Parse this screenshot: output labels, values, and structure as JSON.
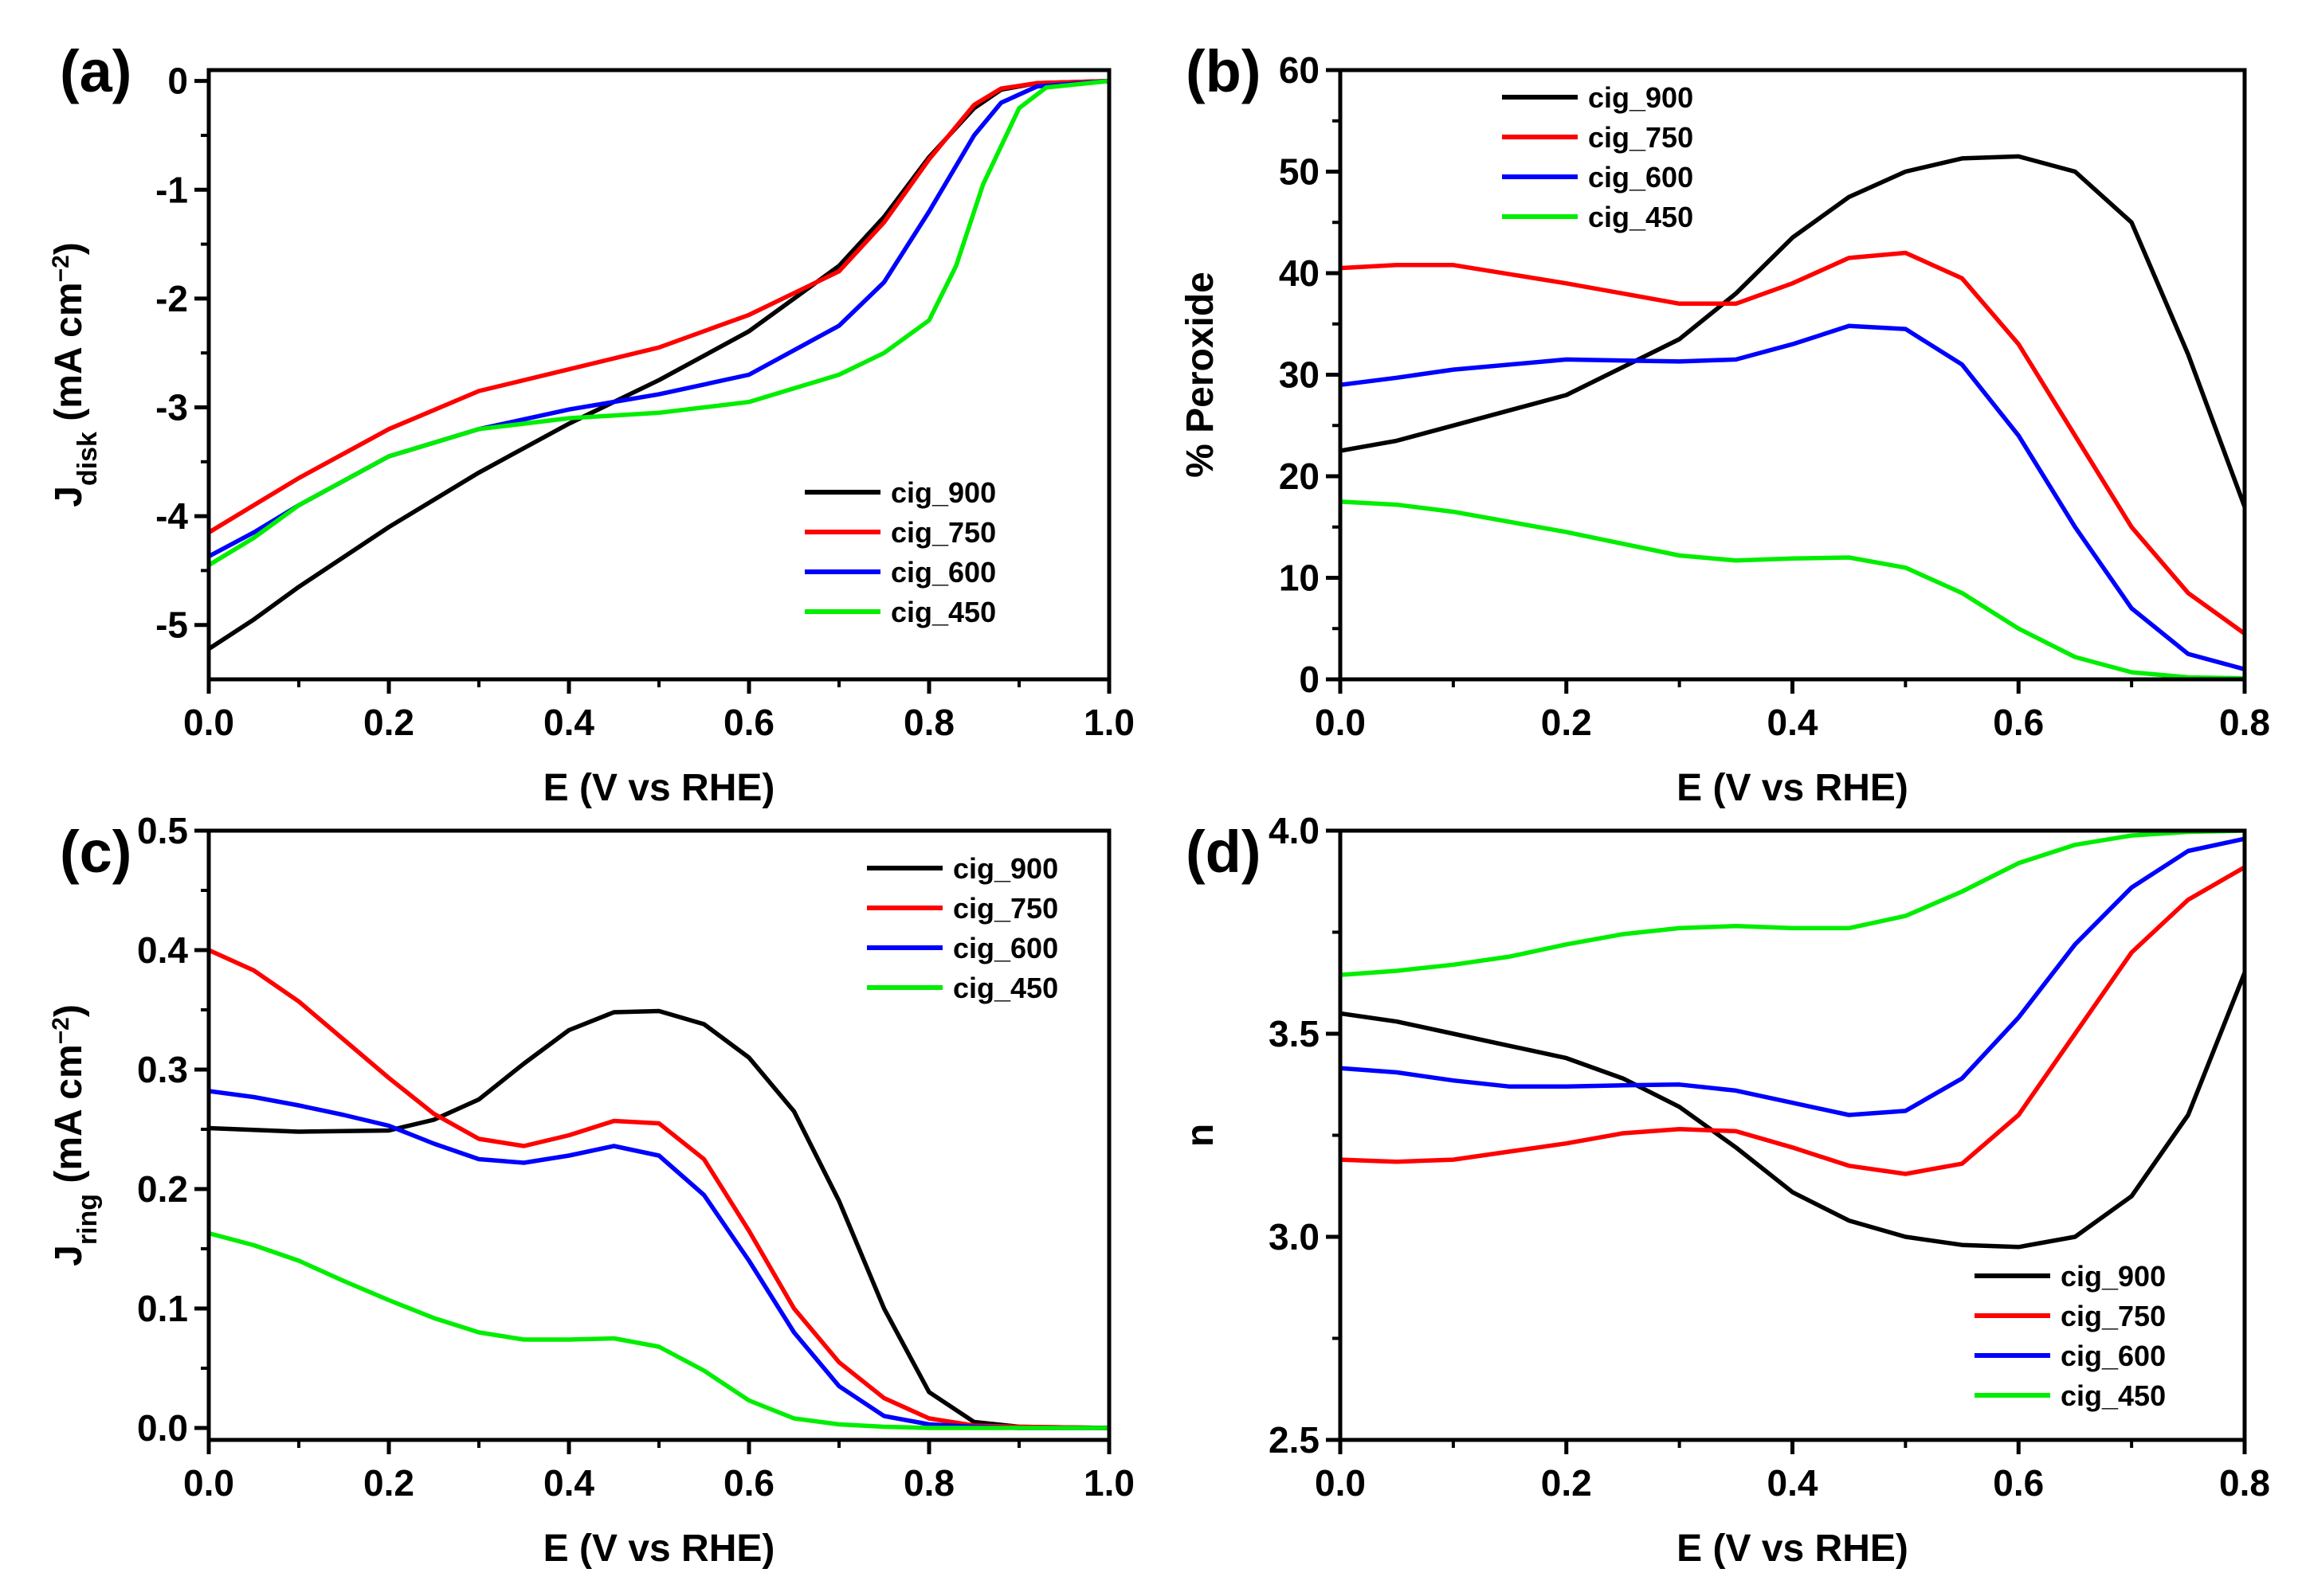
{
  "chart_data": [
    {
      "panel_label": "(a)",
      "type": "line",
      "xlabel": "E (V vs RHE)",
      "ylabel": {
        "main": "J",
        "sub": "disk",
        "unit": " (mA cm",
        "sup": "−2",
        "close": ")"
      },
      "xlim": [
        0,
        1.0
      ],
      "ylim": [
        -5.5,
        0.1
      ],
      "xticks": [
        0,
        0.2,
        0.4,
        0.6,
        0.8,
        1.0
      ],
      "xtick_labels": [
        "0.0",
        "0.2",
        "0.4",
        "0.6",
        "0.8",
        "1.0"
      ],
      "yticks": [
        0,
        -1,
        -2,
        -3,
        -4,
        -5
      ],
      "ytick_labels": [
        "0",
        "-1",
        "-2",
        "-3",
        "-4",
        "-5"
      ],
      "legend_position": "bottom-right",
      "series": [
        {
          "name": "cig_900",
          "color": "#000000",
          "x": [
            0,
            0.05,
            0.1,
            0.2,
            0.3,
            0.4,
            0.5,
            0.6,
            0.7,
            0.75,
            0.8,
            0.85,
            0.88,
            0.92,
            1.0
          ],
          "values": [
            -5.22,
            -4.95,
            -4.65,
            -4.1,
            -3.6,
            -3.15,
            -2.75,
            -2.3,
            -1.7,
            -1.25,
            -0.7,
            -0.25,
            -0.08,
            -0.02,
            0
          ]
        },
        {
          "name": "cig_750",
          "color": "#ff0000",
          "x": [
            0,
            0.05,
            0.1,
            0.2,
            0.3,
            0.4,
            0.5,
            0.6,
            0.7,
            0.75,
            0.8,
            0.85,
            0.88,
            0.92,
            1.0
          ],
          "values": [
            -4.15,
            -3.9,
            -3.65,
            -3.2,
            -2.85,
            -2.65,
            -2.45,
            -2.15,
            -1.75,
            -1.3,
            -0.72,
            -0.22,
            -0.07,
            -0.02,
            0
          ]
        },
        {
          "name": "cig_600",
          "color": "#0000ff",
          "x": [
            0,
            0.05,
            0.1,
            0.2,
            0.3,
            0.4,
            0.5,
            0.6,
            0.7,
            0.75,
            0.8,
            0.85,
            0.88,
            0.92,
            1.0
          ],
          "values": [
            -4.37,
            -4.15,
            -3.9,
            -3.45,
            -3.2,
            -3.02,
            -2.88,
            -2.7,
            -2.25,
            -1.85,
            -1.2,
            -0.5,
            -0.2,
            -0.05,
            0
          ]
        },
        {
          "name": "cig_450",
          "color": "#00ee00",
          "x": [
            0,
            0.05,
            0.1,
            0.2,
            0.3,
            0.4,
            0.5,
            0.6,
            0.7,
            0.75,
            0.8,
            0.83,
            0.86,
            0.9,
            0.93,
            1.0
          ],
          "values": [
            -4.45,
            -4.2,
            -3.9,
            -3.45,
            -3.2,
            -3.1,
            -3.05,
            -2.95,
            -2.7,
            -2.5,
            -2.2,
            -1.7,
            -0.95,
            -0.25,
            -0.06,
            0
          ]
        }
      ]
    },
    {
      "panel_label": "(b)",
      "type": "line",
      "xlabel": "E (V vs RHE)",
      "ylabel": {
        "main": "% Peroxide"
      },
      "xlim": [
        0,
        0.8
      ],
      "ylim": [
        0,
        60
      ],
      "xticks": [
        0,
        0.2,
        0.4,
        0.6,
        0.8
      ],
      "xtick_labels": [
        "0.0",
        "0.2",
        "0.4",
        "0.6",
        "0.8"
      ],
      "yticks": [
        0,
        10,
        20,
        30,
        40,
        50,
        60
      ],
      "ytick_labels": [
        "0",
        "10",
        "20",
        "30",
        "40",
        "50",
        "60"
      ],
      "legend_position": "top-left",
      "series": [
        {
          "name": "cig_900",
          "color": "#000000",
          "x": [
            0,
            0.05,
            0.1,
            0.2,
            0.3,
            0.35,
            0.4,
            0.45,
            0.5,
            0.55,
            0.6,
            0.65,
            0.7,
            0.75,
            0.8
          ],
          "values": [
            22.5,
            23.5,
            25,
            28,
            33.5,
            38,
            43.5,
            47.5,
            50,
            51.3,
            51.5,
            50,
            45,
            32,
            17
          ]
        },
        {
          "name": "cig_750",
          "color": "#ff0000",
          "x": [
            0,
            0.05,
            0.1,
            0.2,
            0.3,
            0.35,
            0.4,
            0.45,
            0.5,
            0.55,
            0.6,
            0.65,
            0.7,
            0.75,
            0.8
          ],
          "values": [
            40.5,
            40.8,
            40.8,
            39,
            37,
            37,
            39,
            41.5,
            42,
            39.5,
            33,
            24,
            15,
            8.5,
            4.5
          ]
        },
        {
          "name": "cig_600",
          "color": "#0000ff",
          "x": [
            0,
            0.05,
            0.1,
            0.2,
            0.3,
            0.35,
            0.4,
            0.45,
            0.5,
            0.55,
            0.6,
            0.65,
            0.7,
            0.75,
            0.8
          ],
          "values": [
            29,
            29.7,
            30.5,
            31.5,
            31.3,
            31.5,
            33,
            34.8,
            34.5,
            31,
            24,
            15,
            7,
            2.5,
            1
          ]
        },
        {
          "name": "cig_450",
          "color": "#00ee00",
          "x": [
            0,
            0.05,
            0.1,
            0.2,
            0.3,
            0.35,
            0.4,
            0.45,
            0.5,
            0.55,
            0.6,
            0.65,
            0.7,
            0.75,
            0.8
          ],
          "values": [
            17.5,
            17.2,
            16.5,
            14.5,
            12.2,
            11.7,
            11.9,
            12,
            11,
            8.5,
            5,
            2.2,
            0.7,
            0.2,
            0.1
          ]
        }
      ]
    },
    {
      "panel_label": "(c)",
      "type": "line",
      "xlabel": "E (V vs RHE)",
      "ylabel": {
        "main": "J",
        "sub": "ring",
        "unit": " (mA cm",
        "sup": "−2",
        "close": ")"
      },
      "xlim": [
        0,
        1.0
      ],
      "ylim": [
        -0.01,
        0.5
      ],
      "xticks": [
        0,
        0.2,
        0.4,
        0.6,
        0.8,
        1.0
      ],
      "xtick_labels": [
        "0.0",
        "0.2",
        "0.4",
        "0.6",
        "0.8",
        "1.0"
      ],
      "yticks": [
        0,
        0.1,
        0.2,
        0.3,
        0.4,
        0.5
      ],
      "ytick_labels": [
        "0.0",
        "0.1",
        "0.2",
        "0.3",
        "0.4",
        "0.5"
      ],
      "legend_position": "top-right",
      "series": [
        {
          "name": "cig_900",
          "color": "#000000",
          "x": [
            0,
            0.1,
            0.2,
            0.25,
            0.3,
            0.35,
            0.4,
            0.45,
            0.5,
            0.55,
            0.6,
            0.65,
            0.7,
            0.75,
            0.8,
            0.85,
            0.9,
            1.0
          ],
          "values": [
            0.251,
            0.248,
            0.249,
            0.258,
            0.275,
            0.305,
            0.333,
            0.348,
            0.349,
            0.338,
            0.31,
            0.265,
            0.19,
            0.1,
            0.03,
            0.005,
            0.001,
            0
          ]
        },
        {
          "name": "cig_750",
          "color": "#ff0000",
          "x": [
            0,
            0.05,
            0.1,
            0.15,
            0.2,
            0.25,
            0.3,
            0.35,
            0.4,
            0.45,
            0.5,
            0.55,
            0.6,
            0.65,
            0.7,
            0.75,
            0.8,
            0.85,
            0.9,
            1.0
          ],
          "values": [
            0.4,
            0.383,
            0.357,
            0.325,
            0.293,
            0.263,
            0.242,
            0.236,
            0.245,
            0.257,
            0.255,
            0.225,
            0.165,
            0.1,
            0.055,
            0.025,
            0.008,
            0.002,
            0.001,
            0
          ]
        },
        {
          "name": "cig_600",
          "color": "#0000ff",
          "x": [
            0,
            0.05,
            0.1,
            0.15,
            0.2,
            0.25,
            0.3,
            0.35,
            0.4,
            0.45,
            0.5,
            0.55,
            0.6,
            0.65,
            0.7,
            0.75,
            0.8,
            0.85,
            0.9,
            1.0
          ],
          "values": [
            0.282,
            0.277,
            0.27,
            0.262,
            0.253,
            0.238,
            0.225,
            0.222,
            0.228,
            0.236,
            0.228,
            0.195,
            0.14,
            0.08,
            0.035,
            0.01,
            0.003,
            0.001,
            0,
            0
          ]
        },
        {
          "name": "cig_450",
          "color": "#00ee00",
          "x": [
            0,
            0.05,
            0.1,
            0.15,
            0.2,
            0.25,
            0.3,
            0.35,
            0.4,
            0.45,
            0.5,
            0.55,
            0.6,
            0.65,
            0.7,
            0.75,
            0.8,
            0.9,
            1.0
          ],
          "values": [
            0.163,
            0.153,
            0.14,
            0.123,
            0.107,
            0.092,
            0.08,
            0.074,
            0.074,
            0.075,
            0.068,
            0.048,
            0.023,
            0.008,
            0.003,
            0.001,
            0,
            0,
            0
          ]
        }
      ]
    },
    {
      "panel_label": "(d)",
      "type": "line",
      "xlabel": "E (V vs RHE)",
      "ylabel": {
        "main": "n"
      },
      "xlim": [
        0,
        0.8
      ],
      "ylim": [
        2.5,
        4.0
      ],
      "xticks": [
        0,
        0.2,
        0.4,
        0.6,
        0.8
      ],
      "xtick_labels": [
        "0.0",
        "0.2",
        "0.4",
        "0.6",
        "0.8"
      ],
      "yticks": [
        2.5,
        3.0,
        3.5,
        4.0
      ],
      "ytick_labels": [
        "2.5",
        "3.0",
        "3.5",
        "4.0"
      ],
      "legend_position": "bottom-right",
      "series": [
        {
          "name": "cig_900",
          "color": "#000000",
          "x": [
            0,
            0.05,
            0.1,
            0.15,
            0.2,
            0.25,
            0.3,
            0.35,
            0.4,
            0.45,
            0.5,
            0.55,
            0.6,
            0.65,
            0.7,
            0.75,
            0.8
          ],
          "values": [
            3.55,
            3.53,
            3.5,
            3.47,
            3.44,
            3.39,
            3.32,
            3.22,
            3.11,
            3.04,
            3.0,
            2.98,
            2.975,
            3.0,
            3.1,
            3.3,
            3.65
          ]
        },
        {
          "name": "cig_750",
          "color": "#ff0000",
          "x": [
            0,
            0.05,
            0.1,
            0.15,
            0.2,
            0.25,
            0.3,
            0.35,
            0.4,
            0.45,
            0.5,
            0.55,
            0.6,
            0.65,
            0.7,
            0.75,
            0.8
          ],
          "values": [
            3.19,
            3.185,
            3.19,
            3.21,
            3.23,
            3.255,
            3.265,
            3.26,
            3.22,
            3.175,
            3.155,
            3.18,
            3.3,
            3.5,
            3.7,
            3.83,
            3.91
          ]
        },
        {
          "name": "cig_600",
          "color": "#0000ff",
          "x": [
            0,
            0.05,
            0.1,
            0.15,
            0.2,
            0.25,
            0.3,
            0.35,
            0.4,
            0.45,
            0.5,
            0.55,
            0.6,
            0.65,
            0.7,
            0.75,
            0.8
          ],
          "values": [
            3.415,
            3.405,
            3.385,
            3.37,
            3.37,
            3.373,
            3.375,
            3.36,
            3.33,
            3.3,
            3.31,
            3.39,
            3.54,
            3.72,
            3.86,
            3.95,
            3.98
          ]
        },
        {
          "name": "cig_450",
          "color": "#00ee00",
          "x": [
            0,
            0.05,
            0.1,
            0.15,
            0.2,
            0.25,
            0.3,
            0.35,
            0.4,
            0.45,
            0.5,
            0.55,
            0.6,
            0.65,
            0.7,
            0.75,
            0.8
          ],
          "values": [
            3.645,
            3.655,
            3.67,
            3.69,
            3.72,
            3.745,
            3.76,
            3.765,
            3.76,
            3.76,
            3.79,
            3.85,
            3.92,
            3.965,
            3.988,
            3.997,
            4.0
          ]
        }
      ]
    }
  ]
}
